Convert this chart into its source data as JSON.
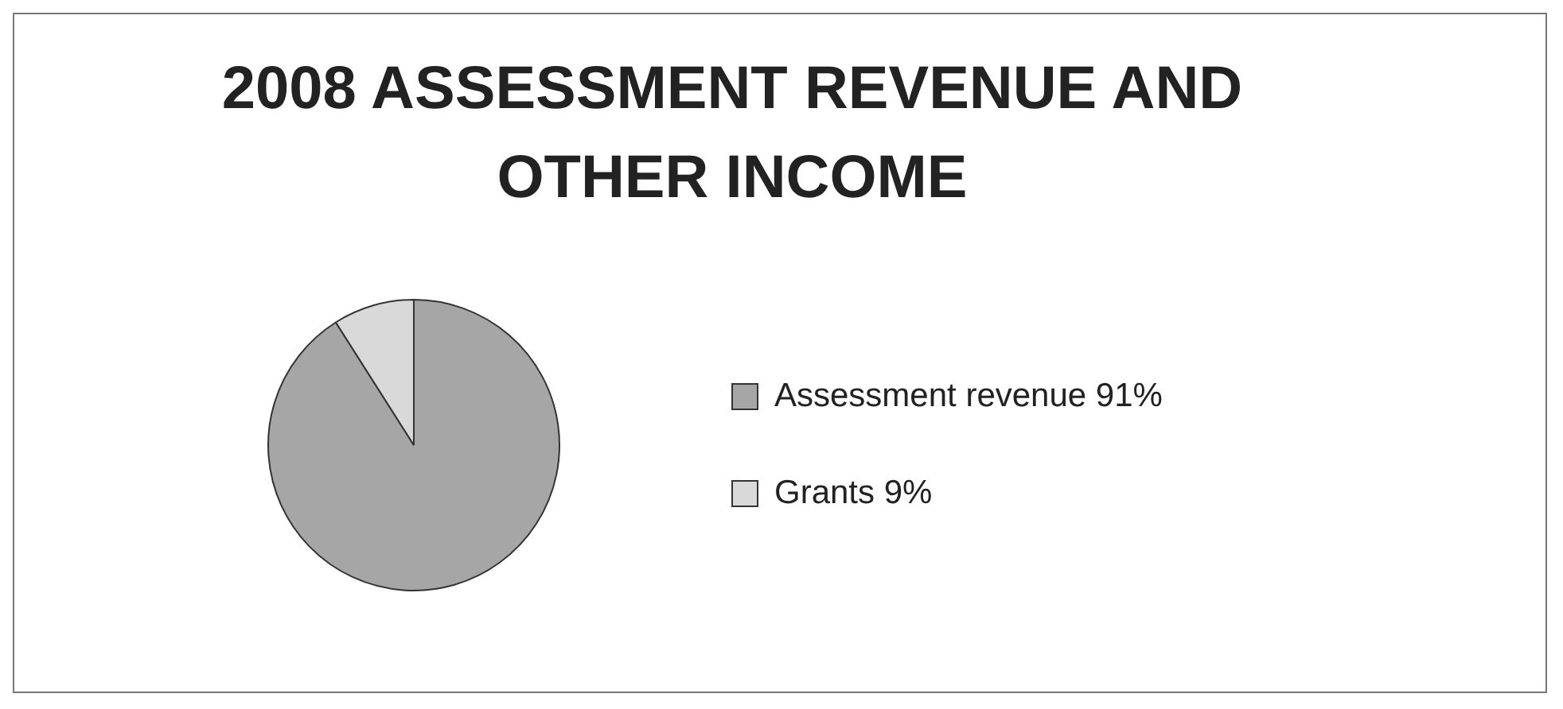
{
  "chart_data": {
    "type": "pie",
    "title": "2008 ASSESSMENT REVENUE AND OTHER INCOME",
    "categories": [
      "Assessment revenue 91%",
      "Grants 9%"
    ],
    "values": [
      91,
      9
    ],
    "colors": [
      "#a6a6a6",
      "#d9d9d9"
    ],
    "legend": "right"
  }
}
